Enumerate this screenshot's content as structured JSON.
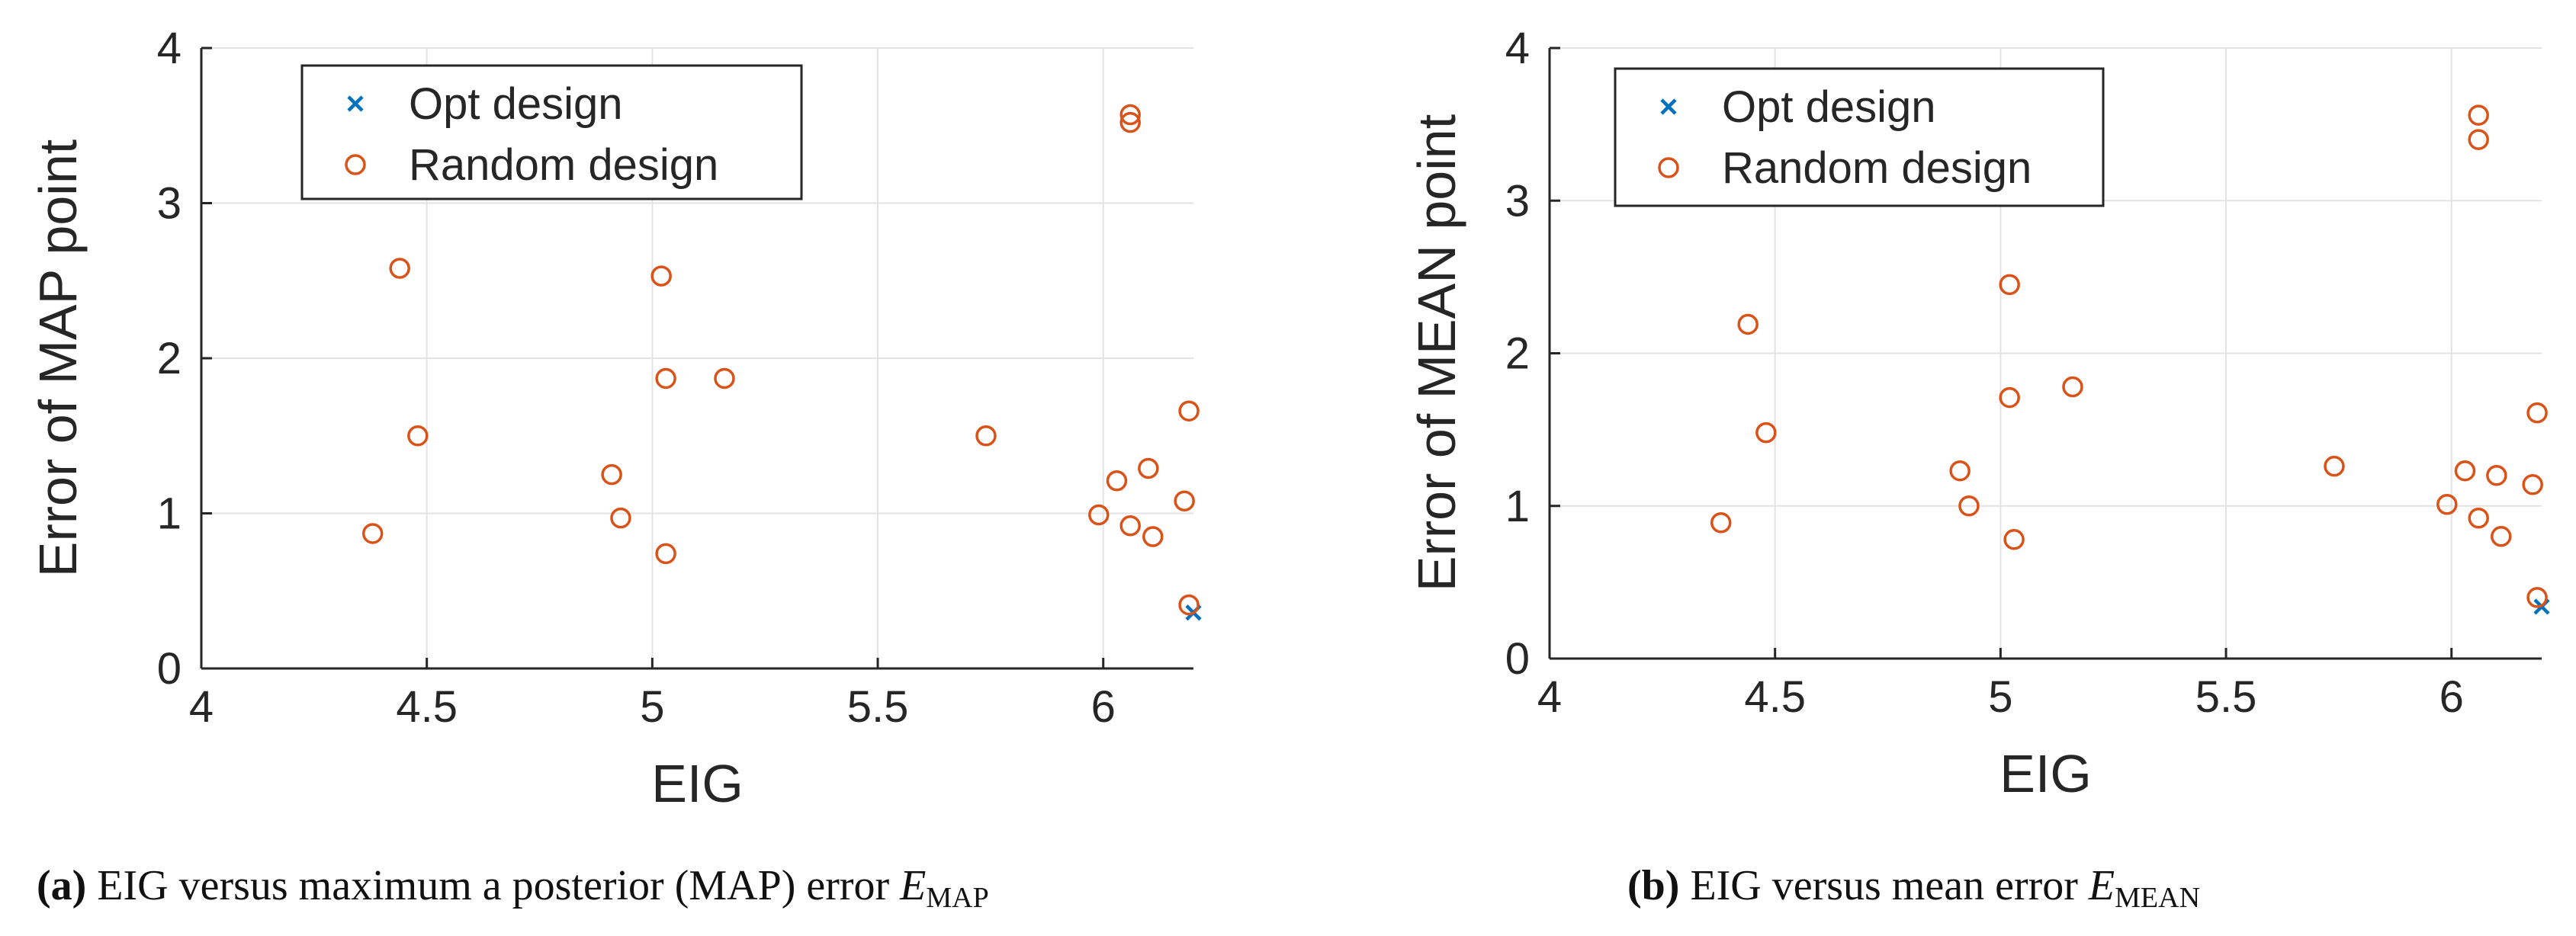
{
  "colors": {
    "opt": "#0072BD",
    "random": "#D95319",
    "grid": "#e3e3e3",
    "axis": "#262626"
  },
  "chart_data": [
    {
      "type": "scatter",
      "xlabel": "EIG",
      "ylabel": "Error of MAP point",
      "xlim": [
        4,
        6.2
      ],
      "ylim": [
        0,
        4
      ],
      "xticks": [
        4,
        4.5,
        5,
        5.5,
        6
      ],
      "xtick_labels": [
        "4",
        "4.5",
        "5",
        "5.5",
        "6"
      ],
      "yticks": [
        0,
        1,
        2,
        3,
        4
      ],
      "ytick_labels": [
        "0",
        "1",
        "2",
        "3",
        "4"
      ],
      "grid": true,
      "legend_position": "top-left",
      "series": [
        {
          "name": "Opt design",
          "marker": "x",
          "color": "#0072BD",
          "points": [
            [
              6.2,
              0.36
            ]
          ]
        },
        {
          "name": "Random design",
          "marker": "o",
          "color": "#D95319",
          "points": [
            [
              6.06,
              3.57
            ],
            [
              6.06,
              3.52
            ],
            [
              4.44,
              2.58
            ],
            [
              5.02,
              2.53
            ],
            [
              5.03,
              1.87
            ],
            [
              5.16,
              1.87
            ],
            [
              4.48,
              1.5
            ],
            [
              5.74,
              1.5
            ],
            [
              6.19,
              1.66
            ],
            [
              4.91,
              1.25
            ],
            [
              6.1,
              1.29
            ],
            [
              6.03,
              1.21
            ],
            [
              6.18,
              1.08
            ],
            [
              4.38,
              0.87
            ],
            [
              4.93,
              0.97
            ],
            [
              5.99,
              0.99
            ],
            [
              6.06,
              0.92
            ],
            [
              6.11,
              0.85
            ],
            [
              5.03,
              0.74
            ],
            [
              6.19,
              0.41
            ]
          ]
        }
      ],
      "caption": {
        "tag": "(a)",
        "text": "EIG versus maximum a posterior (MAP) error",
        "var": "E",
        "sub": "MAP"
      }
    },
    {
      "type": "scatter",
      "xlabel": "EIG",
      "ylabel": "Error of MEAN point",
      "xlim": [
        4,
        6.2
      ],
      "ylim": [
        0,
        4
      ],
      "xticks": [
        4,
        4.5,
        5,
        5.5,
        6
      ],
      "xtick_labels": [
        "4",
        "4.5",
        "5",
        "5.5",
        "6"
      ],
      "yticks": [
        0,
        1,
        2,
        3,
        4
      ],
      "ytick_labels": [
        "0",
        "1",
        "2",
        "3",
        "4"
      ],
      "grid": true,
      "legend_position": "top-left",
      "series": [
        {
          "name": "Opt design",
          "marker": "x",
          "color": "#0072BD",
          "points": [
            [
              6.2,
              0.34
            ]
          ]
        },
        {
          "name": "Random design",
          "marker": "o",
          "color": "#D95319",
          "points": [
            [
              6.06,
              3.56
            ],
            [
              6.06,
              3.4
            ],
            [
              4.44,
              2.19
            ],
            [
              5.02,
              2.45
            ],
            [
              5.02,
              1.71
            ],
            [
              5.16,
              1.78
            ],
            [
              4.48,
              1.48
            ],
            [
              5.74,
              1.26
            ],
            [
              6.19,
              1.61
            ],
            [
              4.91,
              1.23
            ],
            [
              6.1,
              1.2
            ],
            [
              6.03,
              1.23
            ],
            [
              6.18,
              1.14
            ],
            [
              4.38,
              0.89
            ],
            [
              4.93,
              1.0
            ],
            [
              5.99,
              1.01
            ],
            [
              6.06,
              0.92
            ],
            [
              6.11,
              0.8
            ],
            [
              5.03,
              0.78
            ],
            [
              6.19,
              0.4
            ]
          ]
        }
      ],
      "caption": {
        "tag": "(b)",
        "text": "EIG versus mean error",
        "var": "E",
        "sub": "MEAN"
      }
    }
  ]
}
